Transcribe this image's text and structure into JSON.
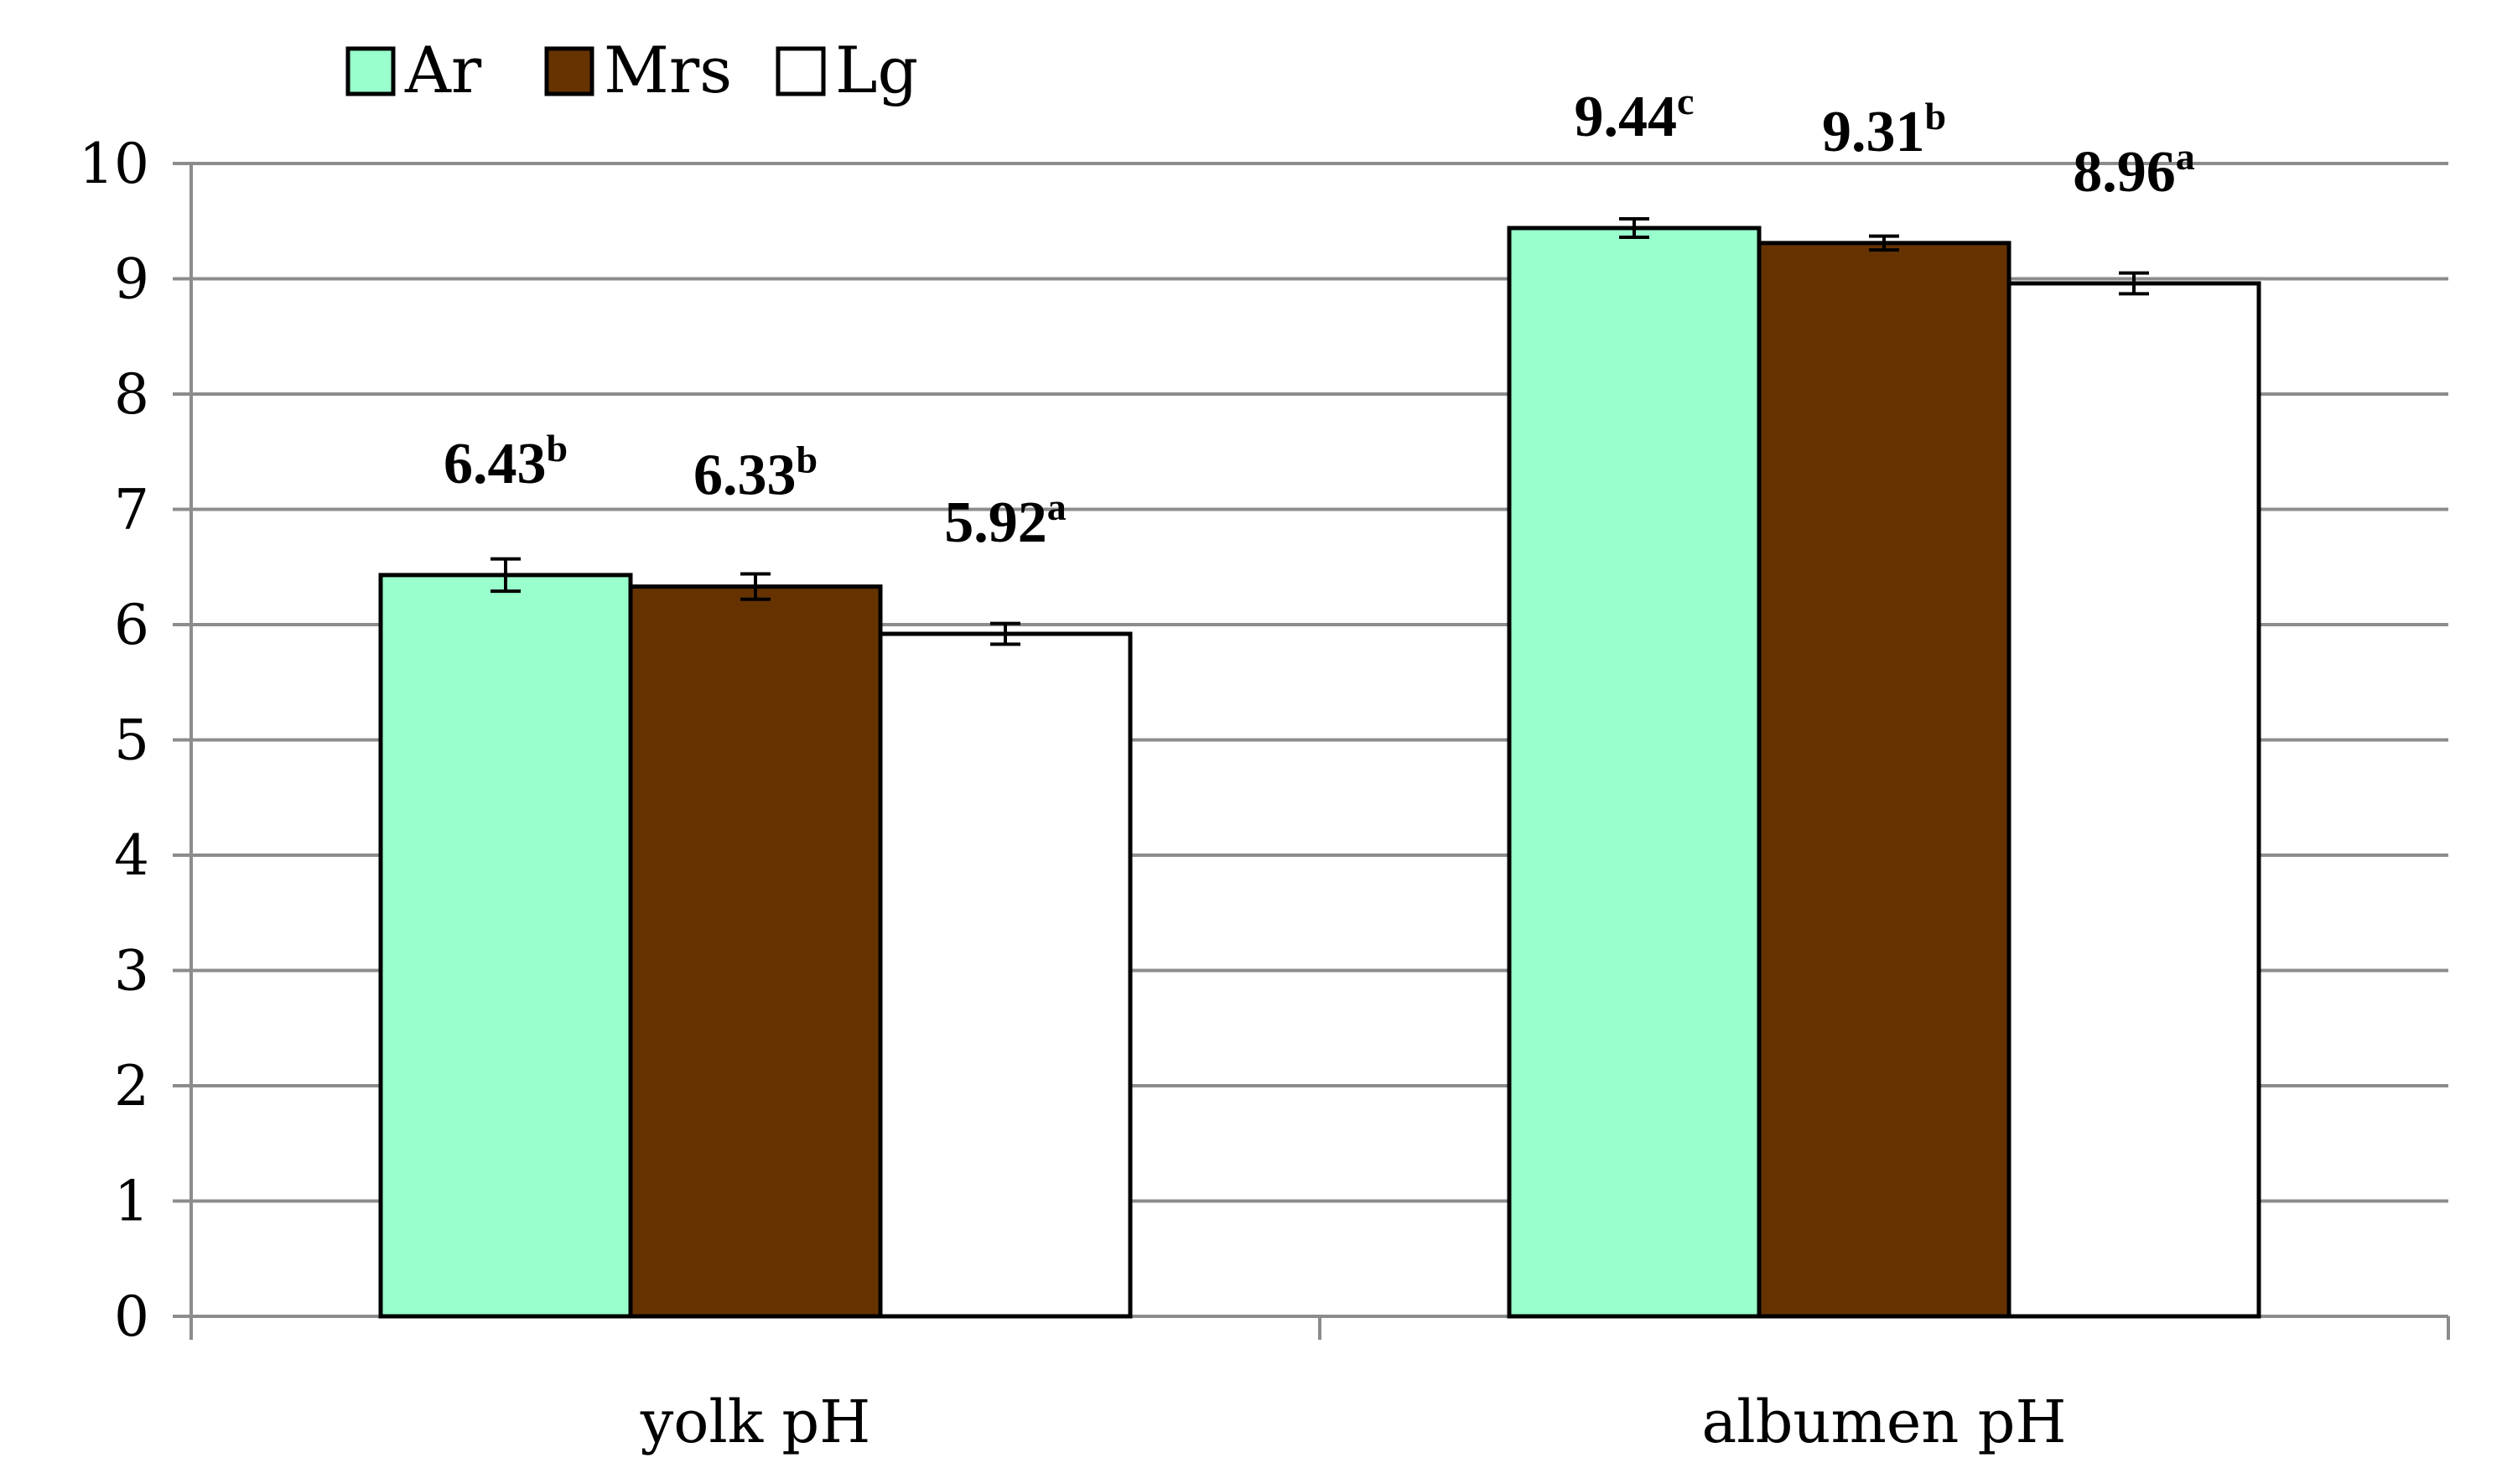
{
  "chart_data": {
    "type": "bar",
    "categories": [
      "yolk pH",
      "albumen pH"
    ],
    "series": [
      {
        "name": "Ar",
        "color": "#99ffcc",
        "values": [
          6.43,
          9.44
        ],
        "errors": [
          0.14,
          0.08
        ],
        "labels": [
          "6.43",
          "9.44"
        ],
        "superscripts": [
          "b",
          "c"
        ]
      },
      {
        "name": "Mrs",
        "color": "#663300",
        "values": [
          6.33,
          9.31
        ],
        "errors": [
          0.11,
          0.06
        ],
        "labels": [
          "6.33",
          "9.31"
        ],
        "superscripts": [
          "b",
          "b"
        ]
      },
      {
        "name": "Lg",
        "color": "#ffffff",
        "values": [
          5.92,
          8.96
        ],
        "errors": [
          0.09,
          0.09
        ],
        "labels": [
          "5.92",
          "8.96"
        ],
        "superscripts": [
          "a",
          "a"
        ]
      }
    ],
    "yticks": [
      "0",
      "1",
      "2",
      "3",
      "4",
      "5",
      "6",
      "7",
      "8",
      "9",
      "10"
    ],
    "ylim": [
      0,
      10
    ],
    "grid": true,
    "legend_position": "top-left",
    "title": "",
    "xlabel": "",
    "ylabel": ""
  }
}
